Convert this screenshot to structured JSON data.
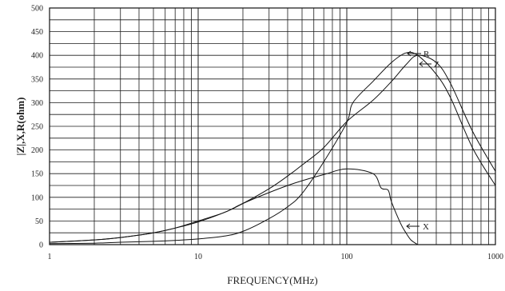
{
  "chart_data": {
    "type": "line",
    "title": "",
    "xlabel": "FREQUENCY(MHz)",
    "ylabel": "|Z|,X,R(ohm)",
    "xscale": "log",
    "xlim": [
      1,
      1000
    ],
    "ylim": [
      0,
      500
    ],
    "grid": true,
    "x_ticks": [
      1,
      10,
      100,
      1000
    ],
    "x_tick_labels": [
      "1",
      "10",
      "100",
      "1000"
    ],
    "y_ticks": [
      0,
      50,
      100,
      150,
      200,
      250,
      300,
      350,
      400,
      450,
      500
    ],
    "y_tick_labels": [
      "0",
      "50",
      "100",
      "150",
      "200",
      "250",
      "300",
      "350",
      "400",
      "450",
      "500"
    ],
    "series": [
      {
        "name": "Z",
        "x": [
          1,
          2,
          3,
          5,
          7,
          10,
          15,
          20,
          30,
          40,
          50,
          70,
          100,
          150,
          200,
          250,
          300,
          400,
          500,
          700,
          1000
        ],
        "values": [
          5,
          10,
          15,
          25,
          35,
          50,
          68,
          87,
          118,
          145,
          168,
          205,
          260,
          305,
          345,
          380,
          400,
          385,
          340,
          240,
          155
        ]
      },
      {
        "name": "R",
        "x": [
          1,
          2,
          3,
          5,
          7,
          10,
          15,
          20,
          30,
          40,
          50,
          70,
          100,
          110,
          150,
          200,
          250,
          300,
          400,
          500,
          700,
          1000
        ],
        "values": [
          2,
          3,
          5,
          7,
          9,
          12,
          18,
          28,
          55,
          80,
          108,
          175,
          258,
          300,
          345,
          385,
          405,
          400,
          360,
          310,
          205,
          125
        ]
      },
      {
        "name": "X",
        "x": [
          1,
          2,
          3,
          5,
          7,
          10,
          15,
          20,
          30,
          40,
          50,
          70,
          100,
          150,
          170,
          190,
          200,
          230,
          250,
          270,
          300
        ],
        "values": [
          5,
          10,
          15,
          25,
          35,
          48,
          68,
          87,
          110,
          125,
          135,
          148,
          160,
          150,
          120,
          115,
          90,
          45,
          25,
          10,
          0
        ]
      }
    ],
    "annotations": [
      "R",
      "Z",
      "X"
    ]
  }
}
